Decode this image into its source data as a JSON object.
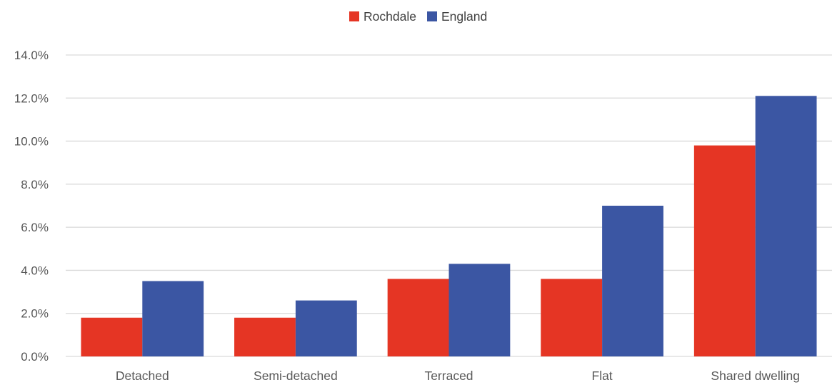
{
  "chart_data": {
    "type": "bar",
    "title": "",
    "xlabel": "",
    "ylabel": "",
    "categories": [
      "Detached",
      "Semi-detached",
      "Terraced",
      "Flat",
      "Shared dwelling"
    ],
    "series": [
      {
        "name": "Rochdale",
        "color": "#e53524",
        "values": [
          1.8,
          1.8,
          3.6,
          3.6,
          9.8
        ]
      },
      {
        "name": "England",
        "color": "#3b56a3",
        "values": [
          3.5,
          2.6,
          4.3,
          7.0,
          12.1
        ]
      }
    ],
    "ylim": [
      0,
      14
    ],
    "yticks": [
      0,
      2,
      4,
      6,
      8,
      10,
      12,
      14
    ],
    "ytick_labels": [
      "0.0%",
      "2.0%",
      "4.0%",
      "6.0%",
      "8.0%",
      "10.0%",
      "12.0%",
      "14.0%"
    ],
    "grid": true,
    "legend_position": "top-center"
  }
}
